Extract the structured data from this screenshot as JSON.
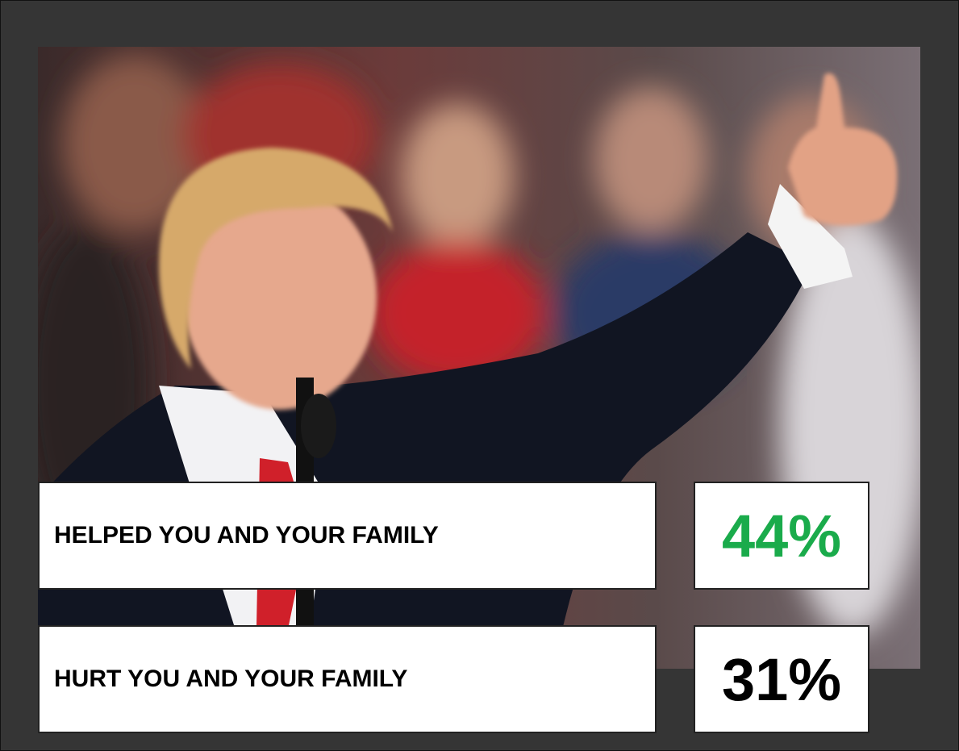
{
  "poll": {
    "rows": [
      {
        "label": "HELPED YOU AND YOUR FAMILY",
        "value": "44%",
        "color": "#1aab4b"
      },
      {
        "label": "HURT YOU AND YOUR FAMILY",
        "value": "31%",
        "color": "#000000"
      }
    ]
  }
}
